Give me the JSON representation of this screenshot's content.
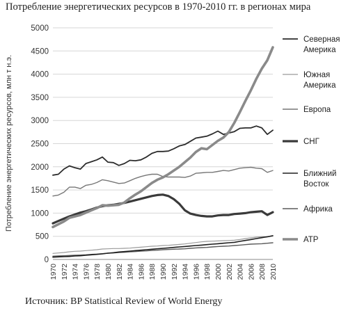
{
  "title": "Потребление энергетических ресурсов в 1970-2010 гг. в регионах мира",
  "source": "Источник: BP Statistical Review of World Energy",
  "chart_data": {
    "type": "line",
    "ylabel": "Потребление энергетических ресурсов, млн т н.э.",
    "ylim": [
      0,
      5000
    ],
    "yticks": [
      "0",
      "500",
      "1000",
      "1500",
      "2000",
      "2500",
      "3000",
      "3500",
      "4000",
      "4500",
      "5000"
    ],
    "xticks": [
      "1970",
      "1972",
      "1974",
      "1976",
      "1978",
      "1980",
      "1982",
      "1984",
      "1986",
      "1988",
      "1990",
      "1992",
      "1994",
      "1996",
      "1998",
      "2000",
      "2002",
      "2004",
      "2006",
      "2008",
      "2010"
    ],
    "x": [
      1970,
      1971,
      1972,
      1973,
      1974,
      1975,
      1976,
      1977,
      1978,
      1979,
      1980,
      1981,
      1982,
      1983,
      1984,
      1985,
      1986,
      1987,
      1988,
      1989,
      1990,
      1991,
      1992,
      1993,
      1994,
      1995,
      1996,
      1997,
      1998,
      1999,
      2000,
      2001,
      2002,
      2003,
      2004,
      2005,
      2006,
      2007,
      2008,
      2009,
      2010
    ],
    "legend_position": "right",
    "grid": true,
    "series": [
      {
        "name": "Северная Америка",
        "legend_lines": [
          "Северная",
          "Америка"
        ],
        "color": "#2b2b2b",
        "width": 1.8,
        "values": [
          1820,
          1840,
          1950,
          2020,
          1980,
          1950,
          2070,
          2110,
          2150,
          2210,
          2100,
          2090,
          2030,
          2070,
          2140,
          2130,
          2150,
          2210,
          2290,
          2330,
          2330,
          2340,
          2390,
          2450,
          2480,
          2550,
          2620,
          2640,
          2660,
          2710,
          2770,
          2700,
          2730,
          2760,
          2830,
          2840,
          2840,
          2880,
          2840,
          2700,
          2790
        ]
      },
      {
        "name": "Южная Америка",
        "legend_lines": [
          "Южная",
          "Америка"
        ],
        "color": "#9a9a9a",
        "width": 1.2,
        "values": [
          130,
          140,
          150,
          165,
          175,
          180,
          190,
          200,
          210,
          225,
          230,
          235,
          235,
          240,
          245,
          255,
          265,
          275,
          285,
          290,
          300,
          305,
          315,
          325,
          335,
          350,
          365,
          380,
          390,
          395,
          400,
          405,
          410,
          415,
          430,
          450,
          465,
          480,
          490,
          490,
          520
        ]
      },
      {
        "name": "Европа",
        "legend_lines": [
          "Европа"
        ],
        "color": "#777777",
        "width": 1.4,
        "values": [
          1370,
          1390,
          1450,
          1560,
          1560,
          1530,
          1600,
          1620,
          1660,
          1720,
          1700,
          1670,
          1640,
          1650,
          1700,
          1750,
          1790,
          1820,
          1840,
          1840,
          1790,
          1780,
          1780,
          1780,
          1770,
          1800,
          1860,
          1870,
          1880,
          1880,
          1900,
          1920,
          1910,
          1940,
          1970,
          1980,
          1990,
          1970,
          1960,
          1880,
          1920
        ]
      },
      {
        "name": "СНГ",
        "legend_lines": [
          "СНГ"
        ],
        "color": "#3a3a3a",
        "width": 3.2,
        "values": [
          780,
          830,
          880,
          930,
          970,
          1010,
          1040,
          1080,
          1120,
          1150,
          1170,
          1180,
          1200,
          1220,
          1250,
          1280,
          1310,
          1340,
          1370,
          1390,
          1400,
          1370,
          1300,
          1200,
          1060,
          990,
          960,
          940,
          930,
          930,
          950,
          960,
          960,
          980,
          990,
          1000,
          1020,
          1030,
          1040,
          960,
          1020
        ]
      },
      {
        "name": "Ближний Восток",
        "legend_lines": [
          "Ближний",
          "Восток"
        ],
        "color": "#1e1e1e",
        "width": 1.6,
        "values": [
          50,
          55,
          60,
          65,
          75,
          80,
          90,
          100,
          110,
          120,
          135,
          145,
          160,
          170,
          180,
          190,
          200,
          210,
          220,
          230,
          240,
          250,
          260,
          270,
          280,
          290,
          300,
          310,
          320,
          330,
          340,
          350,
          360,
          370,
          390,
          410,
          430,
          450,
          470,
          490,
          510
        ]
      },
      {
        "name": "Африка",
        "legend_lines": [
          "Африка"
        ],
        "color": "#5a5a5a",
        "width": 1.4,
        "values": [
          70,
          75,
          80,
          85,
          90,
          95,
          100,
          110,
          115,
          125,
          135,
          140,
          150,
          155,
          165,
          170,
          180,
          185,
          195,
          200,
          210,
          215,
          220,
          225,
          230,
          240,
          250,
          255,
          260,
          270,
          280,
          285,
          290,
          300,
          310,
          320,
          330,
          335,
          340,
          350,
          360
        ]
      },
      {
        "name": "АТР",
        "legend_lines": [
          "АТР"
        ],
        "color": "#8a8a8a",
        "width": 3.6,
        "values": [
          700,
          760,
          820,
          900,
          930,
          960,
          1010,
          1060,
          1110,
          1170,
          1160,
          1170,
          1180,
          1230,
          1320,
          1400,
          1470,
          1560,
          1650,
          1720,
          1770,
          1840,
          1920,
          2000,
          2100,
          2200,
          2320,
          2400,
          2380,
          2470,
          2560,
          2630,
          2750,
          2950,
          3180,
          3420,
          3650,
          3900,
          4120,
          4300,
          4580
        ]
      }
    ]
  }
}
